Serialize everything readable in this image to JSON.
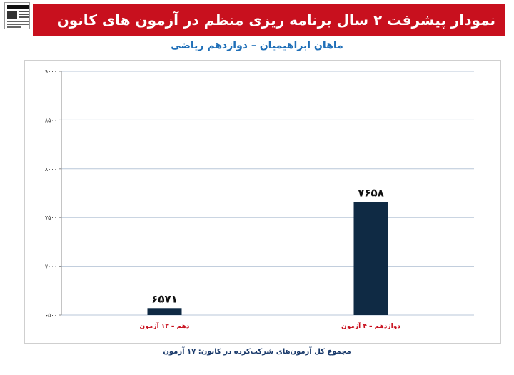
{
  "header": {
    "title": "نمودار پیشرفت ۲ سال برنامه ریزی منظم در آزمون های کانون",
    "logo_icon": "newspaper-logo-icon"
  },
  "subtitle": "ماهان ابراهیمیان – دوازدهم ریاضی",
  "footer_note": "مجموع کل آزمون‌های شرکت‌کرده در کانون: ۱۷ آزمون",
  "colors": {
    "banner": "#c8101e",
    "bar": "#0f2a44",
    "subtitle": "#1f6fb8",
    "category_label": "#c8101e",
    "grid": "#b9c7d8"
  },
  "chart_data": {
    "type": "bar",
    "categories": [
      "دهم – ۱۳ آزمون",
      "دوازدهم – ۴ آزمون"
    ],
    "values": [
      6571,
      7658
    ],
    "value_labels": [
      "۶۵۷۱",
      "۷۶۵۸"
    ],
    "ylim": [
      6500,
      9000
    ],
    "yticks": [
      6500,
      7000,
      7500,
      8000,
      8500,
      9000
    ],
    "ytick_labels": [
      "۶۵۰۰",
      "۷۰۰۰",
      "۷۵۰۰",
      "۸۰۰۰",
      "۸۵۰۰",
      "۹۰۰۰"
    ],
    "grid": true,
    "legend": "none",
    "title": "",
    "xlabel": "",
    "ylabel": ""
  }
}
